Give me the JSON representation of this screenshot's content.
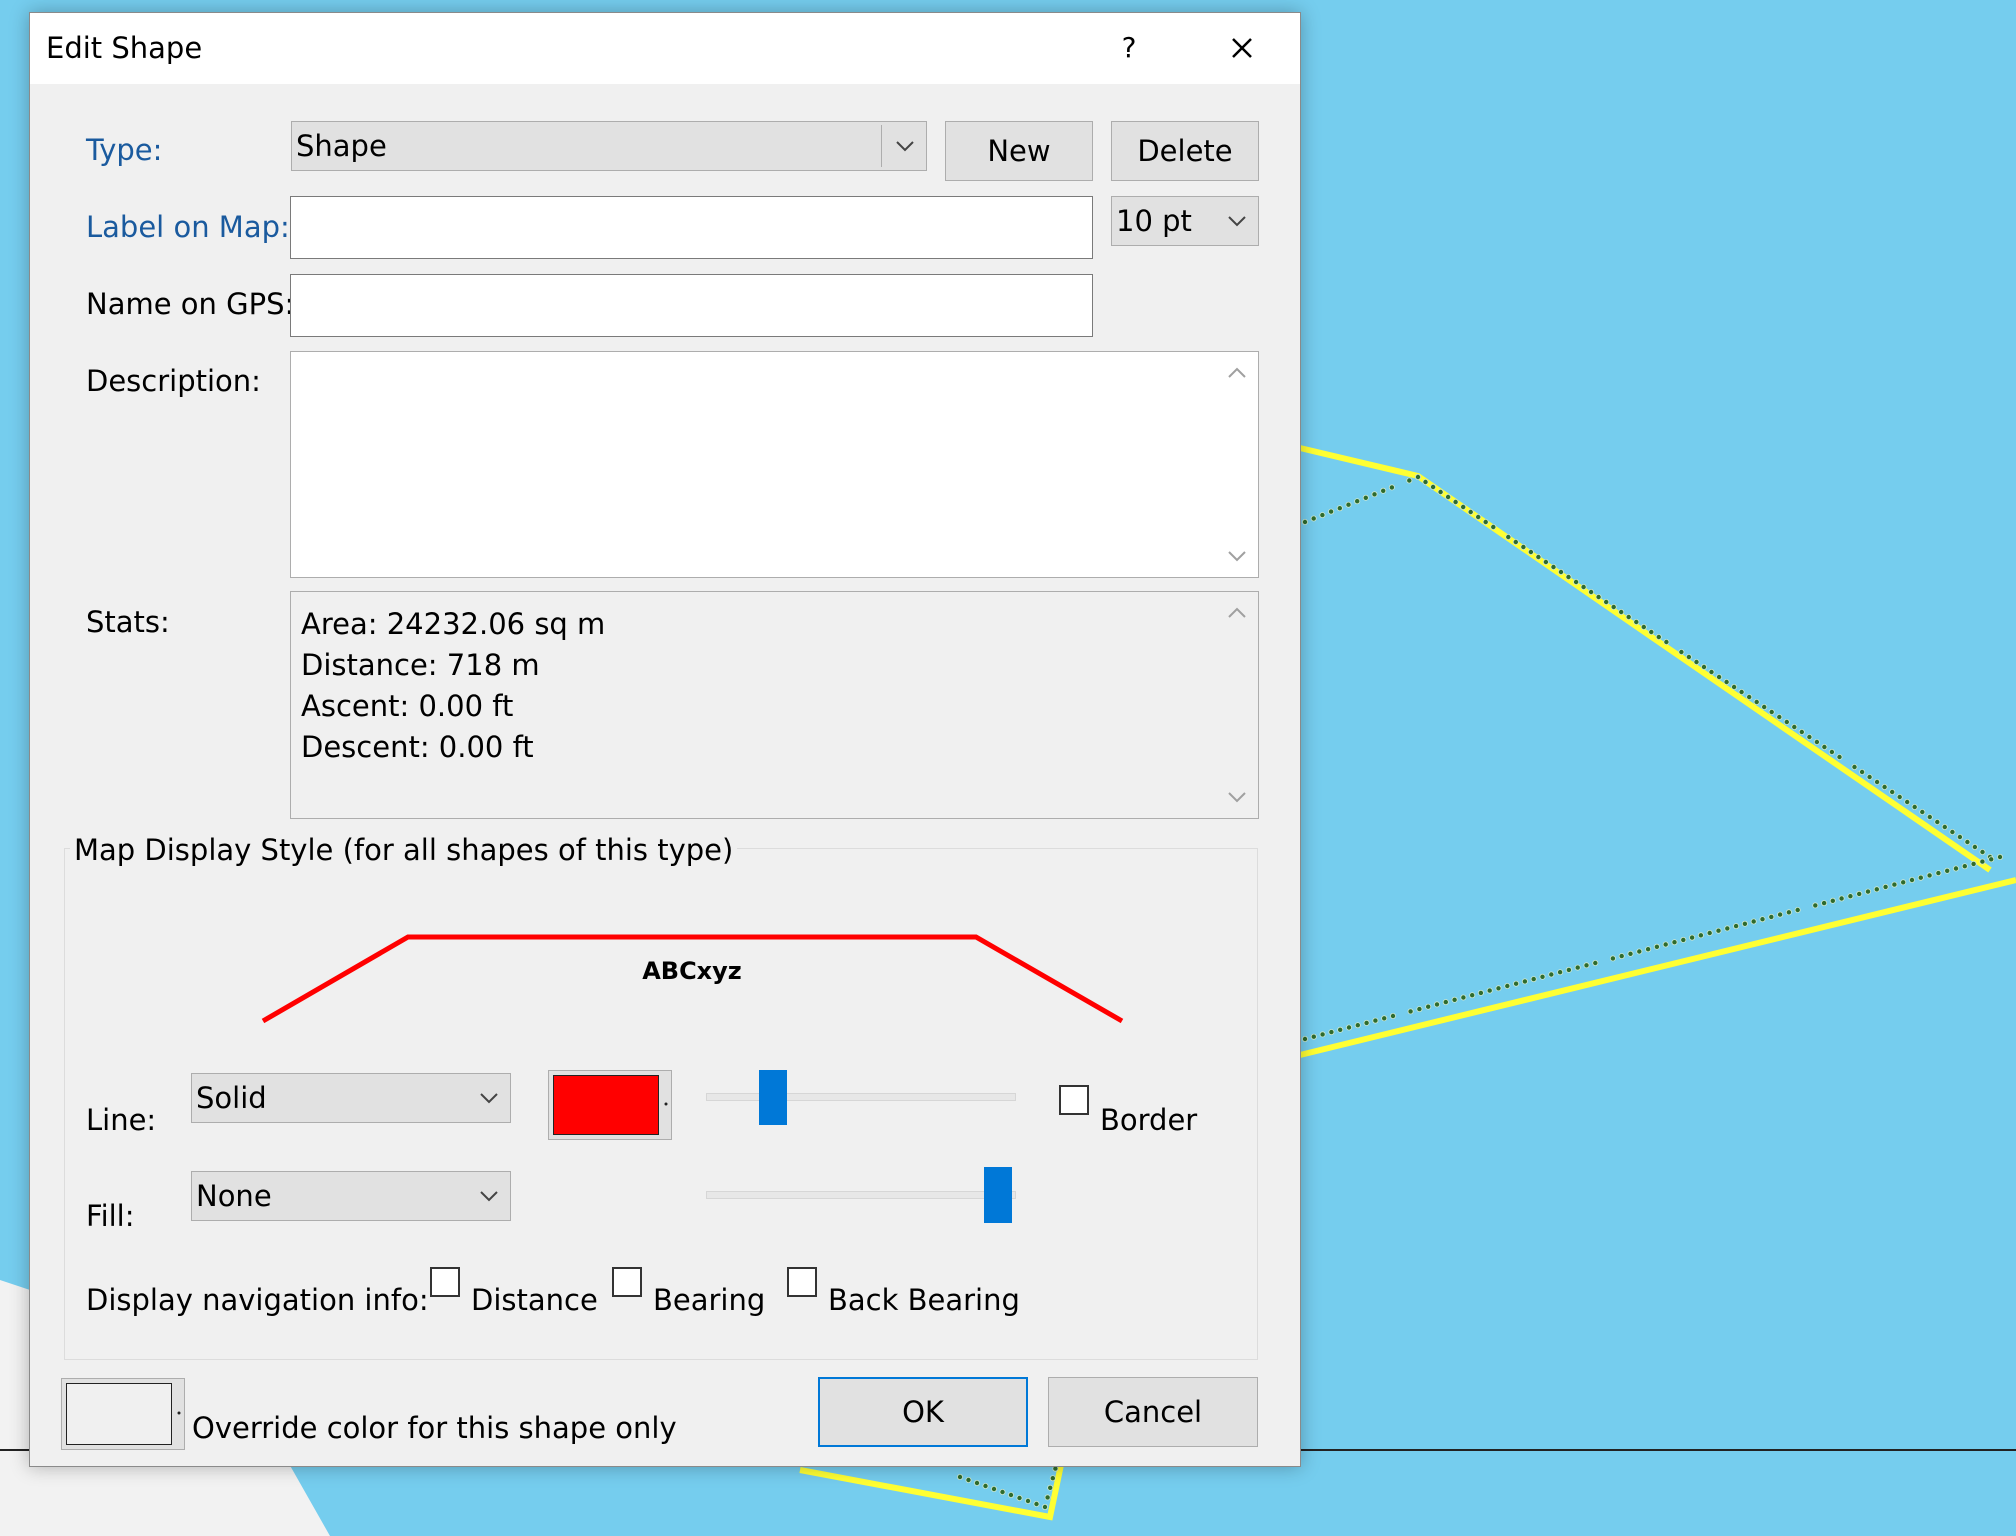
{
  "dialog": {
    "title": "Edit Shape",
    "help_label": "?"
  },
  "form": {
    "type": {
      "label": "Type:",
      "value": "Shape"
    },
    "new_label": "New",
    "delete_label": "Delete",
    "label_on_map": {
      "label": "Label on Map:",
      "value": ""
    },
    "font_size": {
      "value": "10 pt"
    },
    "name_on_gps": {
      "label": "Name on GPS:",
      "value": ""
    },
    "description": {
      "label": "Description:",
      "value": ""
    },
    "stats": {
      "label": "Stats:",
      "lines": [
        "Area: 24232.06 sq m",
        "Distance: 718 m",
        "Ascent: 0.00 ft",
        "Descent: 0.00 ft"
      ]
    }
  },
  "style": {
    "group_title": "Map Display Style (for all shapes of this type)",
    "preview_text": "ABCxyz",
    "preview_color": "#ff0000",
    "line": {
      "label": "Line:",
      "value": "Solid",
      "color": "#ff0000",
      "opacity_fraction": 0.2
    },
    "border": {
      "label": "Border",
      "checked": false
    },
    "fill": {
      "label": "Fill:",
      "value": "None",
      "opacity_fraction": 1.0
    },
    "nav": {
      "label": "Display navigation info:",
      "distance": {
        "label": "Distance",
        "checked": false
      },
      "bearing": {
        "label": "Bearing",
        "checked": false
      },
      "back_bearing": {
        "label": "Back Bearing",
        "checked": false
      }
    }
  },
  "footer": {
    "override_label": "Override color for this shape only",
    "ok_label": "OK",
    "cancel_label": "Cancel"
  },
  "map": {
    "water_color": "#75cdee",
    "track_color": "#ffff33",
    "point_color": "#2e6b2e"
  }
}
